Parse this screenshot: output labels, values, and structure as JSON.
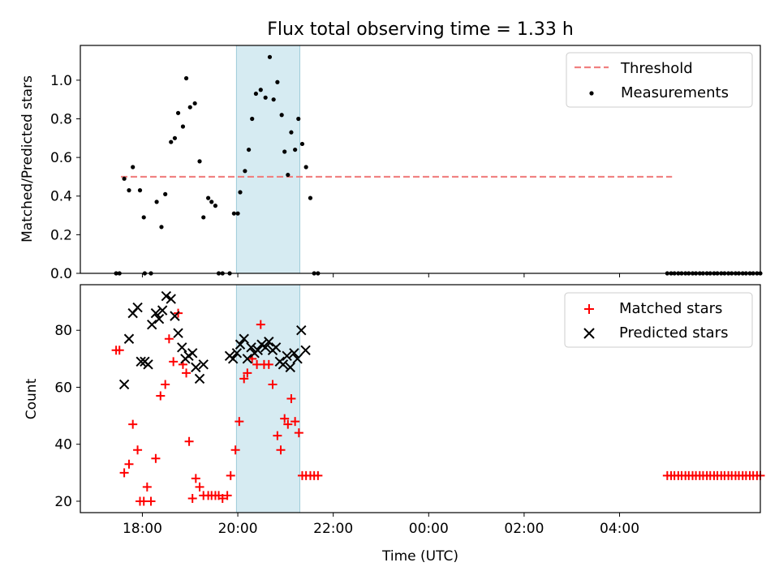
{
  "chart_data": [
    {
      "type": "scatter",
      "title": "Flux total observing time = 1.33 h",
      "ylabel": "Matched/Predicted stars",
      "xlabel": "",
      "xlim": [
        16.7,
        30.95
      ],
      "ylim": [
        0.0,
        1.18
      ],
      "x_ticks": [
        18,
        20,
        22,
        24,
        26,
        28
      ],
      "y_ticks": [
        0.0,
        0.2,
        0.4,
        0.6,
        0.8,
        1.0
      ],
      "y_tick_labels": [
        "0.0",
        "0.2",
        "0.4",
        "0.6",
        "0.8",
        "1.0"
      ],
      "highlight_span": [
        19.97,
        21.3
      ],
      "legend": {
        "position": "top-right",
        "entries": [
          "Threshold",
          "Measurements"
        ]
      },
      "threshold": {
        "name": "Threshold",
        "value": 0.5,
        "x_range": [
          17.55,
          29.1
        ],
        "color": "#f08080"
      },
      "measurements": {
        "name": "Measurements",
        "color": "#000000",
        "x": [
          17.45,
          17.52,
          17.62,
          17.72,
          17.8,
          17.95,
          18.03,
          18.18,
          18.3,
          18.4,
          18.48,
          18.6,
          18.68,
          18.75,
          18.85,
          18.92,
          19.0,
          19.1,
          19.2,
          19.28,
          19.38,
          19.45,
          19.53,
          19.6,
          19.68,
          19.83,
          19.92,
          20.0,
          20.05,
          20.15,
          20.23,
          20.3,
          20.38,
          20.48,
          20.58,
          20.67,
          20.75,
          20.83,
          20.92,
          20.98,
          21.05,
          21.12,
          21.2,
          21.27,
          21.35,
          21.43,
          21.52,
          21.6,
          21.68,
          18.05,
          29.0,
          29.08,
          29.15,
          29.23,
          29.3,
          29.38,
          29.45,
          29.53,
          29.6,
          29.68,
          29.75,
          29.83,
          29.9,
          29.98,
          30.05,
          30.13,
          30.2,
          30.28,
          30.35,
          30.43,
          30.5,
          30.58,
          30.65,
          30.73,
          30.8,
          30.88,
          30.95
        ],
        "y": [
          0.0,
          0.0,
          0.49,
          0.43,
          0.55,
          0.43,
          0.29,
          0.0,
          0.37,
          0.24,
          0.41,
          0.68,
          0.7,
          0.83,
          0.76,
          1.01,
          0.86,
          0.88,
          0.58,
          0.29,
          0.39,
          0.37,
          0.35,
          0.0,
          0.0,
          0.0,
          0.31,
          0.31,
          0.42,
          0.53,
          0.64,
          0.8,
          0.93,
          0.95,
          0.91,
          1.12,
          0.9,
          0.99,
          0.82,
          0.63,
          0.51,
          0.73,
          0.64,
          0.8,
          0.67,
          0.55,
          0.39,
          0.0,
          0.0,
          0.0,
          0.0,
          0.0,
          0.0,
          0.0,
          0.0,
          0.0,
          0.0,
          0.0,
          0.0,
          0.0,
          0.0,
          0.0,
          0.0,
          0.0,
          0.0,
          0.0,
          0.0,
          0.0,
          0.0,
          0.0,
          0.0,
          0.0,
          0.0,
          0.0,
          0.0,
          0.0,
          0.0
        ]
      }
    },
    {
      "type": "scatter",
      "title": "",
      "ylabel": "Count",
      "xlabel": "Time (UTC)",
      "xlim": [
        16.7,
        30.95
      ],
      "ylim": [
        16.0,
        96.0
      ],
      "x_ticks": [
        18,
        20,
        22,
        24,
        26,
        28
      ],
      "x_tick_labels": [
        "18:00",
        "20:00",
        "22:00",
        "00:00",
        "02:00",
        "04:00"
      ],
      "y_ticks": [
        20,
        40,
        60,
        80
      ],
      "y_tick_labels": [
        "20",
        "40",
        "60",
        "80"
      ],
      "highlight_span": [
        19.97,
        21.3
      ],
      "legend": {
        "position": "top-right",
        "entries": [
          "Matched stars",
          "Predicted stars"
        ]
      },
      "series": [
        {
          "name": "Matched stars",
          "marker": "plus",
          "color": "#ff0000",
          "x": [
            17.45,
            17.52,
            17.62,
            17.72,
            17.8,
            17.9,
            17.95,
            18.03,
            18.1,
            18.18,
            18.28,
            18.38,
            18.48,
            18.56,
            18.65,
            18.75,
            18.85,
            18.92,
            18.98,
            19.05,
            19.12,
            19.2,
            19.28,
            19.38,
            19.45,
            19.53,
            19.6,
            19.68,
            19.78,
            19.85,
            19.95,
            20.03,
            20.13,
            20.2,
            20.3,
            20.4,
            20.48,
            20.55,
            20.65,
            20.73,
            20.83,
            20.9,
            20.98,
            21.05,
            21.12,
            21.2,
            21.28,
            21.35,
            21.43,
            21.52,
            21.6,
            21.68,
            29.0,
            29.08,
            29.15,
            29.23,
            29.3,
            29.38,
            29.45,
            29.53,
            29.6,
            29.68,
            29.75,
            29.83,
            29.9,
            29.98,
            30.05,
            30.13,
            30.2,
            30.28,
            30.35,
            30.43,
            30.5,
            30.58,
            30.65,
            30.73,
            30.8,
            30.88,
            30.95
          ],
          "y": [
            73,
            73,
            30,
            33,
            47,
            38,
            20,
            20,
            25,
            20,
            35,
            57,
            61,
            77,
            69,
            86,
            68,
            65,
            41,
            21,
            28,
            25,
            22,
            22,
            22,
            22,
            22,
            21,
            22,
            29,
            38,
            48,
            63,
            65,
            70,
            68,
            82,
            68,
            68,
            61,
            43,
            38,
            49,
            47,
            56,
            48,
            44,
            29,
            29,
            29,
            29,
            29,
            29,
            29,
            29,
            29,
            29,
            29,
            29,
            29,
            29,
            29,
            29,
            29,
            29,
            29,
            29,
            29,
            29,
            29,
            29,
            29,
            29,
            29,
            29,
            29,
            29,
            29,
            29
          ]
        },
        {
          "name": "Predicted stars",
          "marker": "x",
          "color": "#000000",
          "x": [
            17.62,
            17.72,
            17.8,
            17.9,
            17.97,
            18.05,
            18.12,
            18.2,
            18.28,
            18.35,
            18.42,
            18.5,
            18.6,
            18.68,
            18.75,
            18.83,
            18.9,
            18.97,
            19.05,
            19.12,
            19.2,
            19.28,
            19.83,
            19.9,
            19.98,
            20.05,
            20.13,
            20.2,
            20.28,
            20.35,
            20.42,
            20.5,
            20.58,
            20.65,
            20.73,
            20.8,
            20.88,
            20.95,
            21.03,
            21.1,
            21.18,
            21.25,
            21.33,
            21.42
          ],
          "y": [
            61,
            77,
            86,
            88,
            69,
            69,
            68,
            82,
            86,
            84,
            87,
            92,
            91,
            85,
            79,
            74,
            70,
            71,
            72,
            67,
            63,
            68,
            71,
            70,
            72,
            75,
            77,
            70,
            74,
            72,
            73,
            75,
            74,
            76,
            73,
            74,
            69,
            68,
            71,
            67,
            72,
            70,
            80,
            73
          ]
        }
      ]
    }
  ]
}
